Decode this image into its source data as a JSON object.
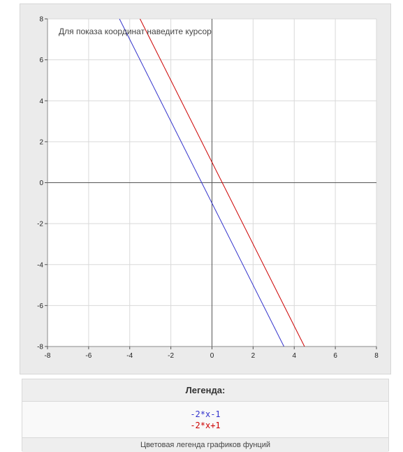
{
  "hint": "Для показа координат наведите курсор",
  "legend": {
    "title": "Легенда:",
    "caption": "Цветовая легенда графиков фунций"
  },
  "colors": {
    "panel": "#ebebeb",
    "grid": "#d9d9d9",
    "axis": "#555555",
    "series1": "#3333cc",
    "series2": "#cc0000"
  },
  "chart_data": {
    "type": "line",
    "title": "",
    "xlabel": "",
    "ylabel": "",
    "xlim": [
      -8,
      8
    ],
    "ylim": [
      -8,
      8
    ],
    "grid": true,
    "xticks": [
      -8,
      -6,
      -4,
      -2,
      0,
      2,
      4,
      6,
      8
    ],
    "yticks": [
      -8,
      -6,
      -4,
      -2,
      0,
      2,
      4,
      6,
      8
    ],
    "series": [
      {
        "name": "-2*x-1",
        "color": "#3333cc",
        "slope": -2,
        "intercept": -1
      },
      {
        "name": "-2*x+1",
        "color": "#cc0000",
        "slope": -2,
        "intercept": 1
      }
    ]
  }
}
